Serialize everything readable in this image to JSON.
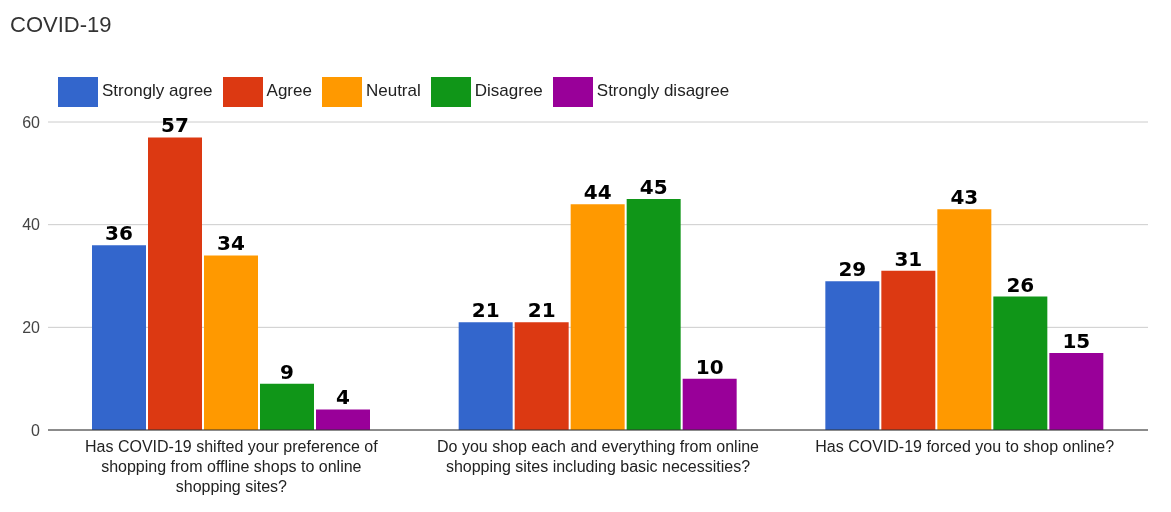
{
  "chart_data": {
    "type": "bar",
    "title": "COVID-19",
    "categories": [
      "Has COVID-19 shifted your preference of shopping from offline shops to online shopping sites?",
      "Do you shop each and everything from online shopping sites including basic necessities?",
      "Has COVID-19 forced you to shop online?"
    ],
    "series": [
      {
        "name": "Strongly agree",
        "color": "#3366cc",
        "values": [
          36,
          21,
          29
        ]
      },
      {
        "name": "Agree",
        "color": "#dc3912",
        "values": [
          57,
          21,
          31
        ]
      },
      {
        "name": "Neutral",
        "color": "#ff9900",
        "values": [
          34,
          44,
          43
        ]
      },
      {
        "name": "Disagree",
        "color": "#109618",
        "values": [
          9,
          45,
          26
        ]
      },
      {
        "name": "Strongly disagree",
        "color": "#990099",
        "values": [
          4,
          10,
          15
        ]
      }
    ],
    "ylim": [
      0,
      60
    ],
    "yticks": [
      0,
      20,
      40,
      60
    ],
    "grid": "y",
    "legend": "top left",
    "data_labels": true
  }
}
